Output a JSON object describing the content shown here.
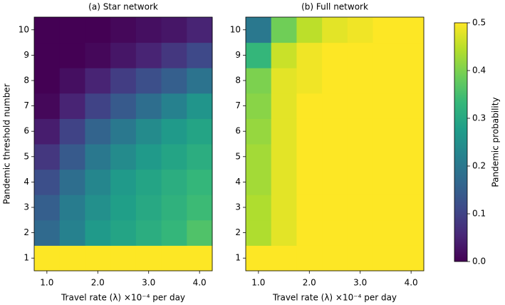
{
  "chart_data": [
    {
      "type": "heatmap",
      "title": "(a) Star network",
      "x_label": "Travel rate (λ) ×10⁻⁴ per day",
      "y_label": "Pandemic threshold number",
      "x": [
        1,
        1.5,
        2,
        2.5,
        3,
        3.5,
        4
      ],
      "y": [
        1,
        2,
        3,
        4,
        5,
        6,
        7,
        8,
        9,
        10
      ],
      "z": [
        [
          0.5,
          0.5,
          0.5,
          0.5,
          0.5,
          0.5,
          0.5
        ],
        [
          0.17,
          0.22,
          0.27,
          0.29,
          0.31,
          0.33,
          0.36
        ],
        [
          0.15,
          0.21,
          0.25,
          0.28,
          0.3,
          0.32,
          0.34
        ],
        [
          0.12,
          0.18,
          0.23,
          0.27,
          0.29,
          0.31,
          0.33
        ],
        [
          0.08,
          0.14,
          0.2,
          0.24,
          0.27,
          0.29,
          0.31
        ],
        [
          0.04,
          0.1,
          0.16,
          0.2,
          0.24,
          0.27,
          0.29
        ],
        [
          0.01,
          0.05,
          0.1,
          0.14,
          0.18,
          0.22,
          0.26
        ],
        [
          0,
          0.02,
          0.05,
          0.09,
          0.12,
          0.15,
          0.19
        ],
        [
          0,
          0,
          0.01,
          0.03,
          0.05,
          0.08,
          0.11
        ],
        [
          0,
          0,
          0,
          0.01,
          0.02,
          0.03,
          0.05
        ]
      ],
      "xlim": [
        0.75,
        4.25
      ],
      "ylim": [
        0.5,
        10.5
      ],
      "xticks": [
        {
          "value": 1,
          "label": "1.0"
        },
        {
          "value": 2,
          "label": "2.0"
        },
        {
          "value": 3,
          "label": "3.0"
        },
        {
          "value": 4,
          "label": "4.0"
        }
      ],
      "yticks": [
        1,
        2,
        3,
        4,
        5,
        6,
        7,
        8,
        9,
        10
      ]
    },
    {
      "type": "heatmap",
      "title": "(b) Full network",
      "x_label": "Travel rate (λ) ×10⁻⁴ per day",
      "x": [
        1,
        1.5,
        2,
        2.5,
        3,
        3.5,
        4
      ],
      "y": [
        1,
        2,
        3,
        4,
        5,
        6,
        7,
        8,
        9,
        10
      ],
      "z": [
        [
          0.5,
          0.5,
          0.5,
          0.5,
          0.5,
          0.5,
          0.5
        ],
        [
          0.44,
          0.48,
          0.5,
          0.5,
          0.5,
          0.5,
          0.5
        ],
        [
          0.44,
          0.48,
          0.5,
          0.5,
          0.5,
          0.5,
          0.5
        ],
        [
          0.43,
          0.48,
          0.5,
          0.5,
          0.5,
          0.5,
          0.5
        ],
        [
          0.43,
          0.48,
          0.5,
          0.5,
          0.5,
          0.5,
          0.5
        ],
        [
          0.42,
          0.48,
          0.5,
          0.5,
          0.5,
          0.5,
          0.5
        ],
        [
          0.41,
          0.48,
          0.5,
          0.5,
          0.5,
          0.5,
          0.5
        ],
        [
          0.4,
          0.48,
          0.49,
          0.5,
          0.5,
          0.5,
          0.5
        ],
        [
          0.33,
          0.46,
          0.49,
          0.5,
          0.5,
          0.5,
          0.5
        ],
        [
          0.2,
          0.39,
          0.45,
          0.48,
          0.49,
          0.5,
          0.5
        ]
      ],
      "xlim": [
        0.75,
        4.25
      ],
      "ylim": [
        0.5,
        10.5
      ],
      "xticks": [
        {
          "value": 1,
          "label": "1.0"
        },
        {
          "value": 2,
          "label": "2.0"
        },
        {
          "value": 3,
          "label": "3.0"
        },
        {
          "value": 4,
          "label": "4.0"
        }
      ],
      "yticks": [
        1,
        2,
        3,
        4,
        5,
        6,
        7,
        8,
        9,
        10
      ]
    },
    {
      "type": "colorbar",
      "label": "Pandemic probability",
      "colormap": "viridis",
      "clim": [
        0,
        0.5
      ],
      "ticks": [
        {
          "value": 0,
          "label": "0.0"
        },
        0.1,
        0.2,
        0.3,
        0.4,
        0.5
      ]
    }
  ]
}
